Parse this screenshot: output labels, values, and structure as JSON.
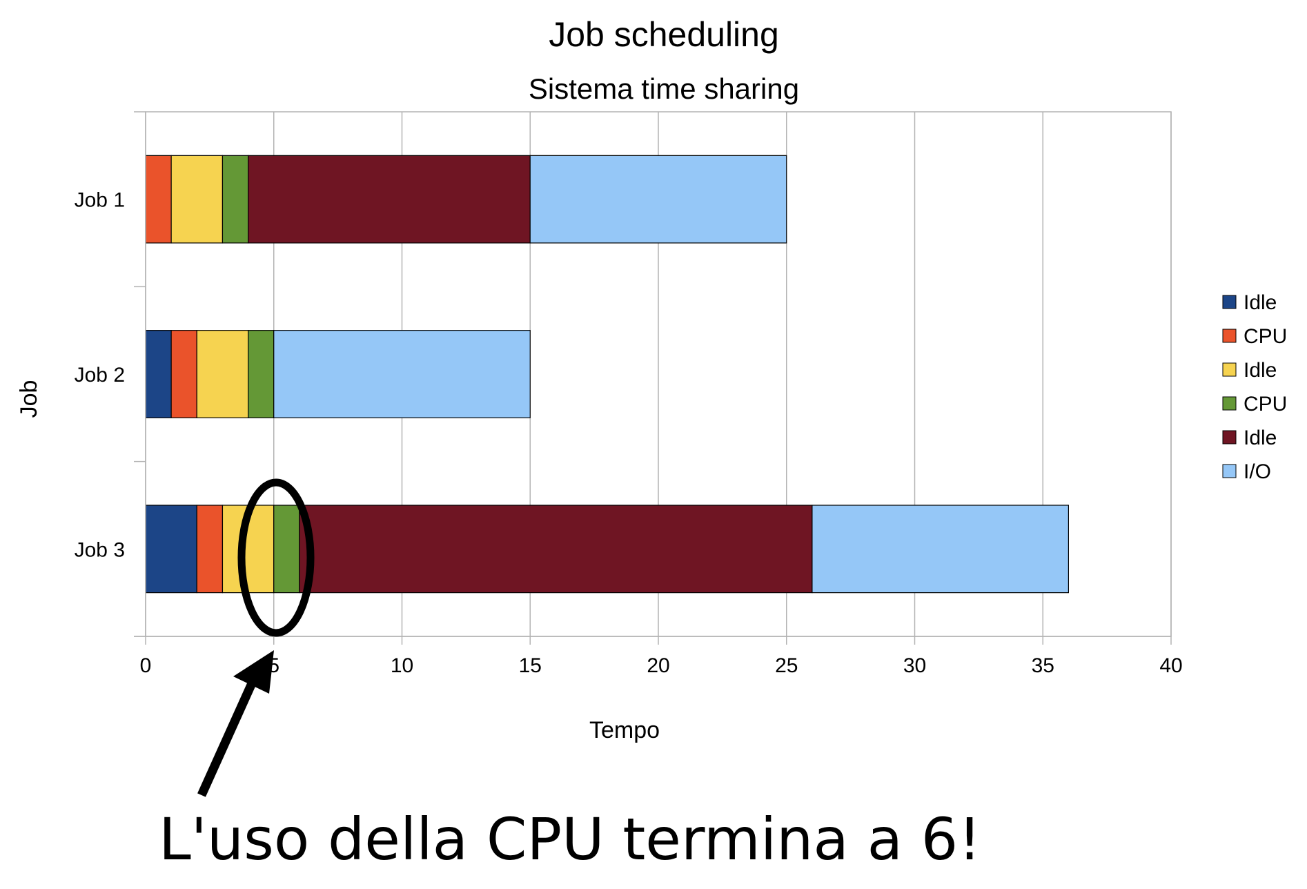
{
  "chart_data": {
    "type": "bar",
    "orientation": "horizontal",
    "stacked": true,
    "title": "Job scheduling",
    "subtitle": "Sistema time sharing",
    "xlabel": "Tempo",
    "ylabel": "Job",
    "xlim": [
      0,
      40
    ],
    "xticks": [
      0,
      5,
      10,
      15,
      20,
      25,
      30,
      35,
      40
    ],
    "grid": true,
    "legend_position": "right",
    "categories": [
      "Job 1",
      "Job 2",
      "Job 3"
    ],
    "series": [
      {
        "name": "Idle",
        "color": "#1c4587",
        "values": [
          0,
          1,
          2
        ]
      },
      {
        "name": "CPU",
        "color": "#ea532b",
        "values": [
          1,
          1,
          1
        ]
      },
      {
        "name": "Idle",
        "color": "#f6d350",
        "values": [
          2,
          2,
          2
        ]
      },
      {
        "name": "CPU",
        "color": "#649836",
        "values": [
          1,
          1,
          1
        ]
      },
      {
        "name": "Idle",
        "color": "#6f1523",
        "values": [
          11,
          0,
          20
        ]
      },
      {
        "name": "I/O",
        "color": "#95c7f7",
        "values": [
          10,
          10,
          10
        ]
      }
    ]
  },
  "annotation": {
    "text": "L'uso della CPU termina a 6!"
  }
}
